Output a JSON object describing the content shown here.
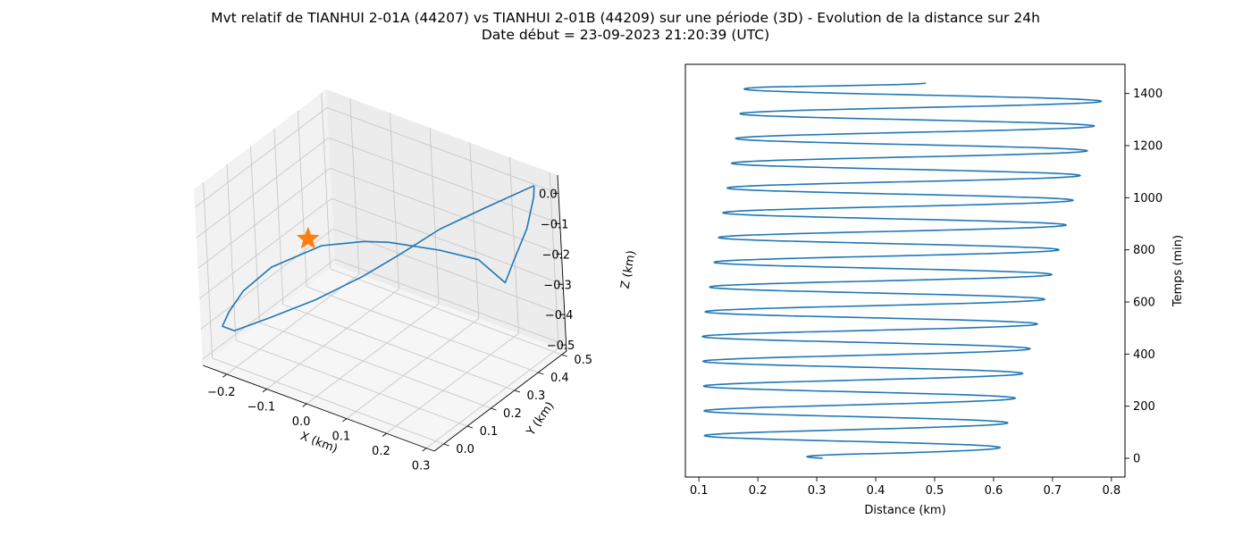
{
  "figure": {
    "title_line1": "Mvt relatif de TIANHUI 2-01A (44207) vs TIANHUI 2-01B (44209) sur une période (3D) - Evolution de la distance sur 24h",
    "title_line2": "Date début = 23-09-2023 21:20:39 (UTC)"
  },
  "chart_data": [
    {
      "type": "line",
      "projection": "3d",
      "xlabel": "X (km)",
      "ylabel": "Y (km)",
      "zlabel": "Z (km)",
      "xlim": [
        -0.26,
        0.32
      ],
      "ylim": [
        -0.04,
        0.52
      ],
      "zlim": [
        -0.52,
        0.06
      ],
      "xticks": [
        -0.2,
        -0.1,
        0.0,
        0.1,
        0.2,
        0.3
      ],
      "yticks": [
        0.0,
        0.1,
        0.2,
        0.3,
        0.4,
        0.5
      ],
      "zticks": [
        0.0,
        -0.1,
        -0.2,
        -0.3,
        -0.4,
        -0.5
      ],
      "xtick_labels": [
        "−0.2",
        "−0.1",
        "0.0",
        "0.1",
        "0.2",
        "0.3"
      ],
      "ytick_labels": [
        "0.0",
        "0.1",
        "0.2",
        "0.3",
        "0.4",
        "0.5"
      ],
      "ztick_labels": [
        "0.0",
        "−0.1",
        "−0.2",
        "−0.3",
        "−0.4",
        "−0.5"
      ],
      "grid": true,
      "line_color": "#1f77b4",
      "marker_color": "#ff7f0e",
      "marker": {
        "shape": "star",
        "x": 0.0,
        "y": 0.0,
        "z": 0.0
      },
      "trajectory": [
        {
          "x": 0.29,
          "y": 0.47,
          "z": 0.04
        },
        {
          "x": 0.3,
          "y": 0.45,
          "z": 0.02
        },
        {
          "x": 0.31,
          "y": 0.4,
          "z": -0.05
        },
        {
          "x": 0.31,
          "y": 0.34,
          "z": -0.12
        },
        {
          "x": 0.31,
          "y": 0.3,
          "z": -0.17
        },
        {
          "x": 0.29,
          "y": 0.28,
          "z": -0.13
        },
        {
          "x": 0.27,
          "y": 0.26,
          "z": -0.09
        },
        {
          "x": 0.19,
          "y": 0.23,
          "z": -0.08
        },
        {
          "x": 0.08,
          "y": 0.2,
          "z": -0.09
        },
        {
          "x": 0.03,
          "y": 0.18,
          "z": -0.1
        },
        {
          "x": -0.06,
          "y": 0.15,
          "z": -0.14
        },
        {
          "x": -0.16,
          "y": 0.1,
          "z": -0.23
        },
        {
          "x": -0.21,
          "y": 0.06,
          "z": -0.31
        },
        {
          "x": -0.23,
          "y": 0.03,
          "z": -0.37
        },
        {
          "x": -0.23,
          "y": 0.0,
          "z": -0.4
        },
        {
          "x": -0.2,
          "y": 0.0,
          "z": -0.4
        },
        {
          "x": -0.12,
          "y": 0.02,
          "z": -0.33
        },
        {
          "x": -0.02,
          "y": 0.05,
          "z": -0.24
        },
        {
          "x": 0.07,
          "y": 0.1,
          "z": -0.15
        },
        {
          "x": 0.14,
          "y": 0.15,
          "z": -0.07
        },
        {
          "x": 0.2,
          "y": 0.22,
          "z": 0.0
        },
        {
          "x": 0.25,
          "y": 0.33,
          "z": 0.03
        },
        {
          "x": 0.29,
          "y": 0.47,
          "z": 0.04
        }
      ]
    },
    {
      "type": "line",
      "xlabel": "Distance (km)",
      "ylabel": "Temps (min)",
      "xlim": [
        0.077,
        0.823
      ],
      "ylim": [
        -72,
        1512
      ],
      "xticks": [
        0.1,
        0.2,
        0.3,
        0.4,
        0.5,
        0.6,
        0.7,
        0.8
      ],
      "yticks": [
        0,
        200,
        400,
        600,
        800,
        1000,
        1200,
        1400
      ],
      "yaxis_side": "right",
      "grid": false,
      "line_color": "#1f77b4",
      "t_end": 1440,
      "period_min": 95,
      "start_distance": 0.31,
      "end_distance": 0.485,
      "min_envelope": {
        "t": [
          0,
          500,
          1380
        ],
        "d": [
          0.12,
          0.11,
          0.175
        ]
      },
      "max_envelope": {
        "t": [
          0,
          1380
        ],
        "d": [
          0.615,
          0.785
        ]
      },
      "first_min_t": 74,
      "first_max_t": 40
    }
  ]
}
